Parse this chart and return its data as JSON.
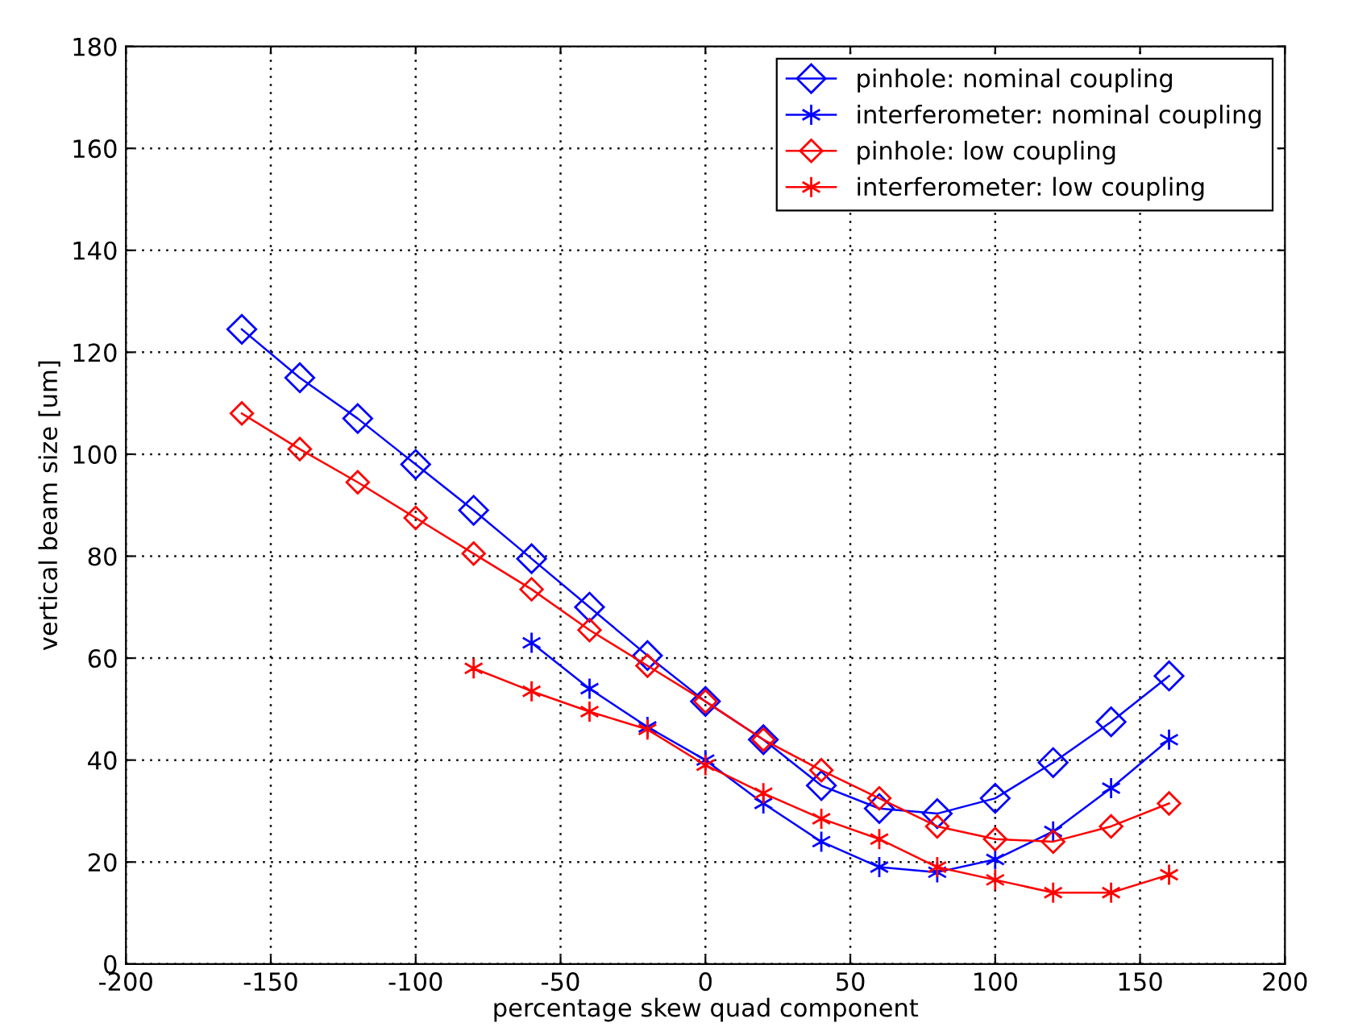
{
  "chart_data": {
    "type": "line",
    "xlabel": "percentage skew quad component",
    "ylabel": "vertical beam size [um]",
    "xlim": [
      -200,
      200
    ],
    "xticks": [
      -200,
      -150,
      -100,
      -50,
      0,
      50,
      100,
      150,
      200
    ],
    "ylim": [
      0,
      180
    ],
    "yticks": [
      0,
      20,
      40,
      60,
      80,
      100,
      120,
      140,
      160,
      180
    ],
    "grid": true,
    "legend": "top right",
    "line_style": "solid",
    "series": [
      {
        "name": "pinhole: nominal coupling",
        "color": "#0000ff",
        "marker": "diamond",
        "x": [
          -160,
          -140,
          -120,
          -100,
          -80,
          -60,
          -40,
          -20,
          0,
          20,
          40,
          60,
          80,
          100,
          120,
          140,
          160
        ],
        "values": [
          124.5,
          115,
          107,
          98,
          89,
          79.5,
          70,
          60.5,
          51.5,
          44,
          35,
          30.5,
          29.5,
          32.5,
          39.5,
          47.5,
          56.5
        ]
      },
      {
        "name": "interferometer: nominal coupling",
        "color": "#0000ff",
        "marker": "cross",
        "x": [
          -60,
          -40,
          -20,
          0,
          20,
          40,
          60,
          80,
          100,
          120,
          140,
          160
        ],
        "values": [
          63,
          54,
          46.5,
          40,
          31.5,
          24,
          19,
          18,
          20.5,
          26,
          34.5,
          44
        ]
      },
      {
        "name": "pinhole: low coupling",
        "color": "#ff0000",
        "marker": "diamond",
        "x": [
          -160,
          -140,
          -120,
          -100,
          -80,
          -60,
          -40,
          -20,
          0,
          20,
          40,
          60,
          80,
          100,
          120,
          140,
          160
        ],
        "values": [
          108,
          101,
          94.5,
          87.5,
          80.5,
          73.5,
          65.5,
          58.5,
          51.5,
          44,
          38,
          32.5,
          27,
          24.5,
          24,
          27,
          31.5
        ]
      },
      {
        "name": "interferometer: low coupling",
        "color": "#ff0000",
        "marker": "cross",
        "x": [
          -80,
          -60,
          -40,
          -20,
          0,
          20,
          40,
          60,
          80,
          100,
          120,
          140,
          160
        ],
        "values": [
          58,
          53.5,
          49.5,
          46,
          39,
          33.5,
          28.5,
          24.5,
          19,
          16.5,
          14,
          14,
          17.5
        ]
      }
    ]
  }
}
